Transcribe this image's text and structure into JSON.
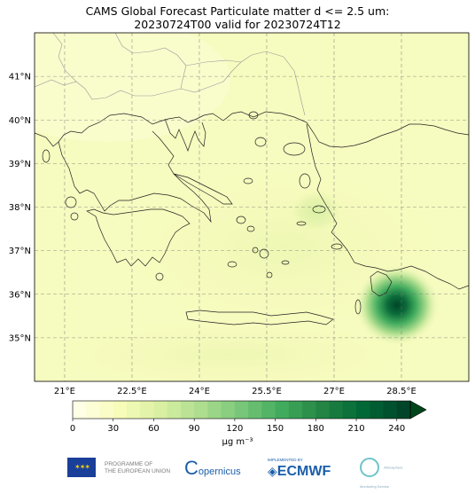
{
  "title": {
    "line1": "CAMS Global Forecast Particulate matter d <= 2.5 um:",
    "line2": "20230724T00 valid for 20230724T12"
  },
  "map": {
    "lon_range": [
      20.0,
      30.0
    ],
    "lat_range": [
      34.0,
      42.0
    ],
    "grid": "dashed",
    "lat_ticks": [
      {
        "value": 41,
        "label": "41°N"
      },
      {
        "value": 40,
        "label": "40°N"
      },
      {
        "value": 39,
        "label": "39°N"
      },
      {
        "value": 38,
        "label": "38°N"
      },
      {
        "value": 37,
        "label": "37°N"
      },
      {
        "value": 36,
        "label": "36°N"
      },
      {
        "value": 35,
        "label": "35°N"
      }
    ],
    "lon_ticks": [
      {
        "value": 21,
        "label": "21°E"
      },
      {
        "value": 22.5,
        "label": "22.5°E"
      },
      {
        "value": 24,
        "label": "24°E"
      },
      {
        "value": 25.5,
        "label": "25.5°E"
      },
      {
        "value": 27,
        "label": "27°E"
      },
      {
        "value": 28.5,
        "label": "28.5°E"
      }
    ],
    "hotspots": [
      {
        "lon": 28.4,
        "lat": 35.75,
        "value": 250
      },
      {
        "lon": 26.6,
        "lat": 37.9,
        "value": 40
      }
    ]
  },
  "colorbar": {
    "ticks": [
      "0",
      "30",
      "60",
      "90",
      "120",
      "150",
      "180",
      "210",
      "240"
    ],
    "unit": "µg m⁻³",
    "colors": [
      "#ffffe5",
      "#f7fcb9",
      "#d9f0a3",
      "#addd8e",
      "#78c679",
      "#41ab5d",
      "#238443",
      "#006837",
      "#004529"
    ],
    "extend": "max"
  },
  "logos": {
    "eu": "PROGRAMME OF THE EUROPEAN UNION",
    "eu_line1": "PROGRAMME OF",
    "eu_line2": "THE EUROPEAN UNION",
    "copernicus": "opernicus",
    "ecmwf_top": "IMPLEMENTED BY",
    "ecmwf": "ECMWF",
    "cams": "Atmosphere Monitoring Service"
  }
}
